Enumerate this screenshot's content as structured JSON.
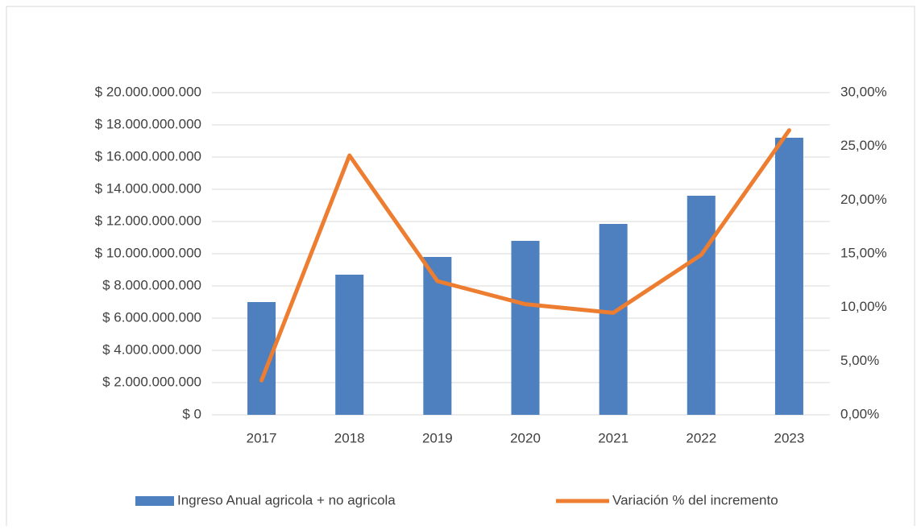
{
  "chart_data": {
    "type": "bar-line",
    "categories": [
      "2017",
      "2018",
      "2019",
      "2020",
      "2021",
      "2022",
      "2023"
    ],
    "series": [
      {
        "name": "Ingreso Anual agricola + no agricola",
        "color": "#4e7fbe",
        "type": "bar",
        "values": [
          7000000000,
          8700000000,
          9800000000,
          10800000000,
          11850000000,
          13600000000,
          17200000000
        ]
      },
      {
        "name": "Variación % del incremento",
        "color": "#ed7d31",
        "type": "line",
        "axis": "y2",
        "values": [
          3.2,
          24.15,
          12.45,
          10.3,
          9.5,
          14.9,
          26.5
        ]
      }
    ],
    "ylim": [
      0,
      20000000000
    ],
    "yticks": [
      {
        "value": 0,
        "label": "$ 0"
      },
      {
        "value": 2000000000,
        "label": "$ 2.000.000.000"
      },
      {
        "value": 4000000000,
        "label": "$ 4.000.000.000"
      },
      {
        "value": 6000000000,
        "label": "$ 6.000.000.000"
      },
      {
        "value": 8000000000,
        "label": "$ 8.000.000.000"
      },
      {
        "value": 10000000000,
        "label": "$ 10.000.000.000"
      },
      {
        "value": 12000000000,
        "label": "$ 12.000.000.000"
      },
      {
        "value": 14000000000,
        "label": "$ 14.000.000.000"
      },
      {
        "value": 16000000000,
        "label": "$ 16.000.000.000"
      },
      {
        "value": 18000000000,
        "label": "$ 18.000.000.000"
      },
      {
        "value": 20000000000,
        "label": "$ 20.000.000.000"
      }
    ],
    "y2lim": [
      0,
      30
    ],
    "y2ticks": [
      {
        "value": 0,
        "label": "0,00%"
      },
      {
        "value": 5,
        "label": "5,00%"
      },
      {
        "value": 10,
        "label": "10,00%"
      },
      {
        "value": 15,
        "label": "15,00%"
      },
      {
        "value": 20,
        "label": "20,00%"
      },
      {
        "value": 25,
        "label": "25,00%"
      },
      {
        "value": 30,
        "label": "30,00%"
      }
    ],
    "grid": true,
    "legend": "bottom"
  }
}
